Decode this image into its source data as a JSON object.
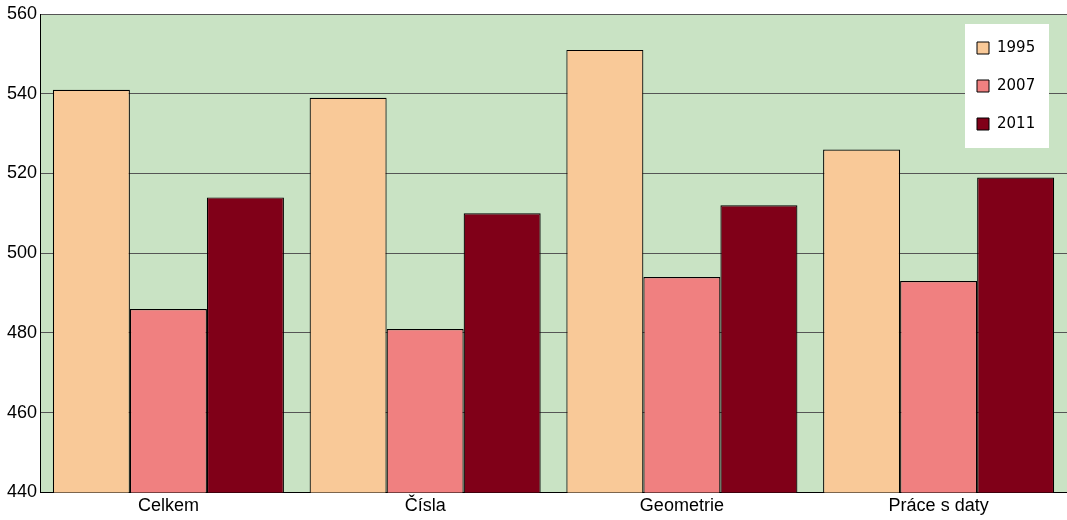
{
  "chart_data": {
    "type": "bar",
    "categories": [
      "Celkem",
      "Čísla",
      "Geometrie",
      "Práce s daty"
    ],
    "series": [
      {
        "name": "1995",
        "color": "#f9c998",
        "values": [
          541,
          539,
          551,
          526
        ]
      },
      {
        "name": "2007",
        "color": "#f08080",
        "values": [
          486,
          481,
          494,
          493
        ]
      },
      {
        "name": "2011",
        "color": "#800018",
        "values": [
          514,
          510,
          512,
          519
        ]
      }
    ],
    "ylim": [
      440,
      560
    ],
    "yticks": [
      440,
      460,
      480,
      500,
      520,
      540,
      560
    ],
    "grid": "y",
    "legend": "top right"
  }
}
